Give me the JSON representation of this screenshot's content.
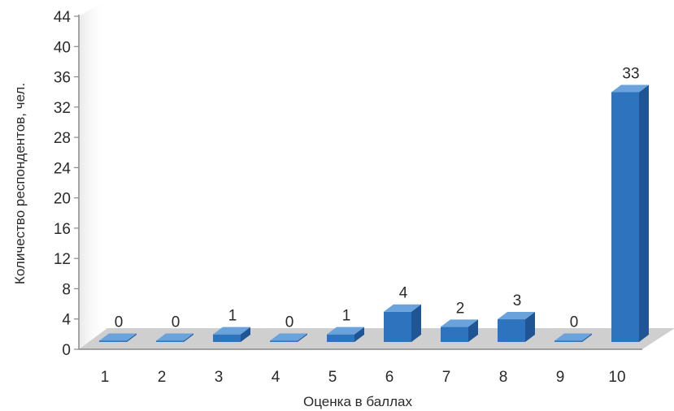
{
  "chart_data": {
    "type": "bar",
    "categories": [
      "1",
      "2",
      "3",
      "4",
      "5",
      "6",
      "7",
      "8",
      "9",
      "10"
    ],
    "values": [
      0,
      0,
      1,
      0,
      1,
      4,
      2,
      3,
      0,
      33
    ],
    "data_labels": [
      "0",
      "0",
      "1",
      "0",
      "1",
      "4",
      "2",
      "3",
      "0",
      "33"
    ],
    "xlabel": "Оценка в баллах",
    "ylabel": "Количество респондентов, чел.",
    "ylim": [
      0,
      44
    ],
    "yticks": [
      "0",
      "4",
      "8",
      "12",
      "16",
      "20",
      "24",
      "28",
      "32",
      "36",
      "40",
      "44"
    ],
    "three_d": true,
    "grid": false,
    "legend": "none",
    "colors": {
      "bar_front": "#2e73be",
      "bar_top": "#6aa3dc",
      "bar_side": "#1f5594",
      "floor": "#cfcfcf",
      "wall": "#f2f2f2",
      "axis": "#8a8a8a"
    }
  }
}
